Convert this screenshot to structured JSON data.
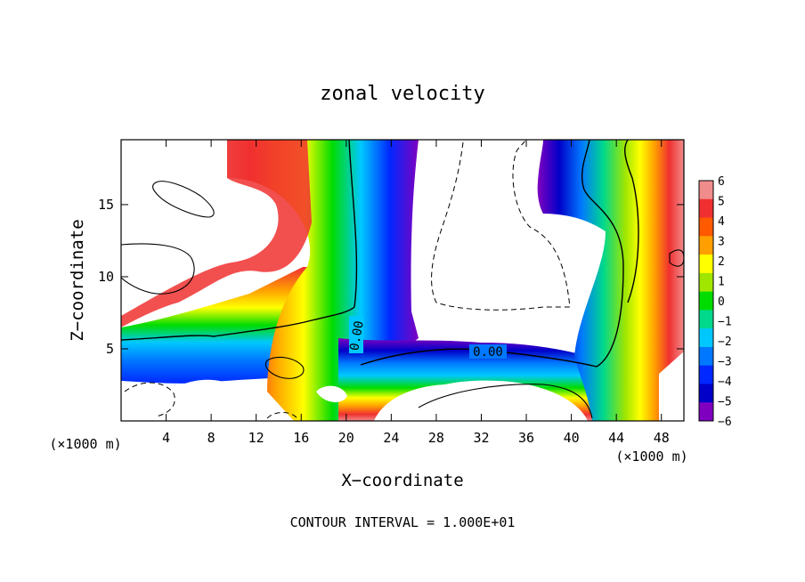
{
  "chart_data": {
    "type": "heatmap",
    "title": "zonal velocity",
    "xlabel": "X−coordinate",
    "ylabel": "Z−coordinate",
    "x_unit_label_left": "(×1000 m)",
    "x_unit_label_right": "(×1000 m)",
    "x_ticks": [
      "4",
      "8",
      "12",
      "16",
      "20",
      "24",
      "28",
      "32",
      "36",
      "40",
      "44",
      "48"
    ],
    "x_tick_values": [
      4,
      8,
      12,
      16,
      20,
      24,
      28,
      32,
      36,
      40,
      44,
      48
    ],
    "y_ticks": [
      "5",
      "10",
      "15"
    ],
    "y_tick_values": [
      5,
      10,
      15
    ],
    "xlim": [
      0,
      50
    ],
    "ylim": [
      0,
      19.5
    ],
    "colorbar_ticks": [
      "6",
      "5",
      "4",
      "3",
      "2",
      "1",
      "0",
      "−1",
      "−2",
      "−3",
      "−4",
      "−5",
      "−6"
    ],
    "colorbar_values": [
      6,
      5,
      4,
      3,
      2,
      1,
      0,
      -1,
      -2,
      -3,
      -4,
      -5,
      -6
    ],
    "colorbar_colors": [
      "#f08c8c",
      "#f03030",
      "#ff5a00",
      "#ffa000",
      "#ffff00",
      "#a0e600",
      "#00dc00",
      "#00d88c",
      "#00c8ff",
      "#0078ff",
      "#0028ff",
      "#0000c8",
      "#8000c0"
    ],
    "contour_labels": [
      "0.00",
      "0.00"
    ],
    "footer": "CONTOUR INTERVAL = 1.000E+01"
  }
}
